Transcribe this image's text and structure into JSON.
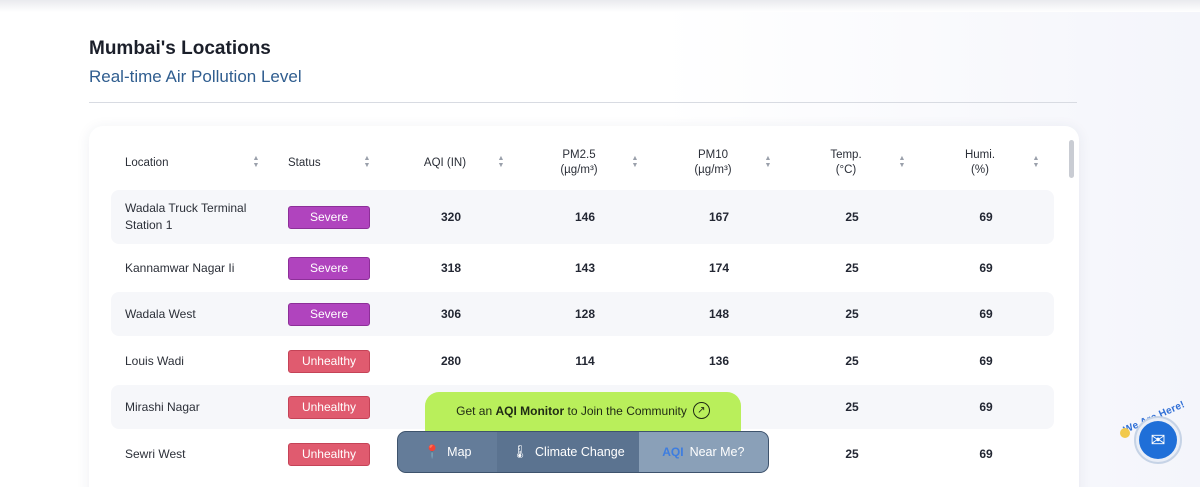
{
  "page": {
    "title": "Mumbai's Locations",
    "subtitle": "Real-time Air Pollution Level"
  },
  "table": {
    "headers": [
      {
        "label": "Location"
      },
      {
        "label": "Status"
      },
      {
        "label": "AQI (IN)"
      },
      {
        "label": "PM2.5\n(µg/m³)"
      },
      {
        "label": "PM10\n(µg/m³)"
      },
      {
        "label": "Temp.\n(°C)"
      },
      {
        "label": "Humi.\n(%)"
      }
    ],
    "rows": [
      {
        "location": "Wadala Truck Terminal\nStation 1",
        "status": "Severe",
        "aqi": "320",
        "pm25": "146",
        "pm10": "167",
        "temp": "25",
        "humi": "69"
      },
      {
        "location": "Kannamwar Nagar Ii",
        "status": "Severe",
        "aqi": "318",
        "pm25": "143",
        "pm10": "174",
        "temp": "25",
        "humi": "69"
      },
      {
        "location": "Wadala West",
        "status": "Severe",
        "aqi": "306",
        "pm25": "128",
        "pm10": "148",
        "temp": "25",
        "humi": "69"
      },
      {
        "location": "Louis Wadi",
        "status": "Unhealthy",
        "aqi": "280",
        "pm25": "114",
        "pm10": "136",
        "temp": "25",
        "humi": "69"
      },
      {
        "location": "Mirashi Nagar",
        "status": "Unhealthy",
        "aqi": "",
        "pm25": "",
        "pm10": "",
        "temp": "25",
        "humi": "69"
      },
      {
        "location": "Sewri West",
        "status": "Unhealthy",
        "aqi": "",
        "pm25": "",
        "pm10": "",
        "temp": "25",
        "humi": "69"
      }
    ]
  },
  "promo": {
    "prefix": "Get an ",
    "bold": "AQI Monitor",
    "suffix": " to Join the Community"
  },
  "nav": {
    "map": "Map",
    "climate": "Climate Change",
    "near": "Near Me?",
    "near_icon": "AQI"
  },
  "help": {
    "text": "We Are Here!"
  },
  "colors": {
    "severe": "#b044be",
    "unhealthy": "#e05b6f",
    "promo": "#b9ef5b",
    "nav": "#5a7290"
  },
  "icons": [
    "sort-icon",
    "map-pin-icon",
    "thermometer-icon",
    "aqi-icon",
    "arrow-up-right-icon",
    "mail-icon"
  ]
}
